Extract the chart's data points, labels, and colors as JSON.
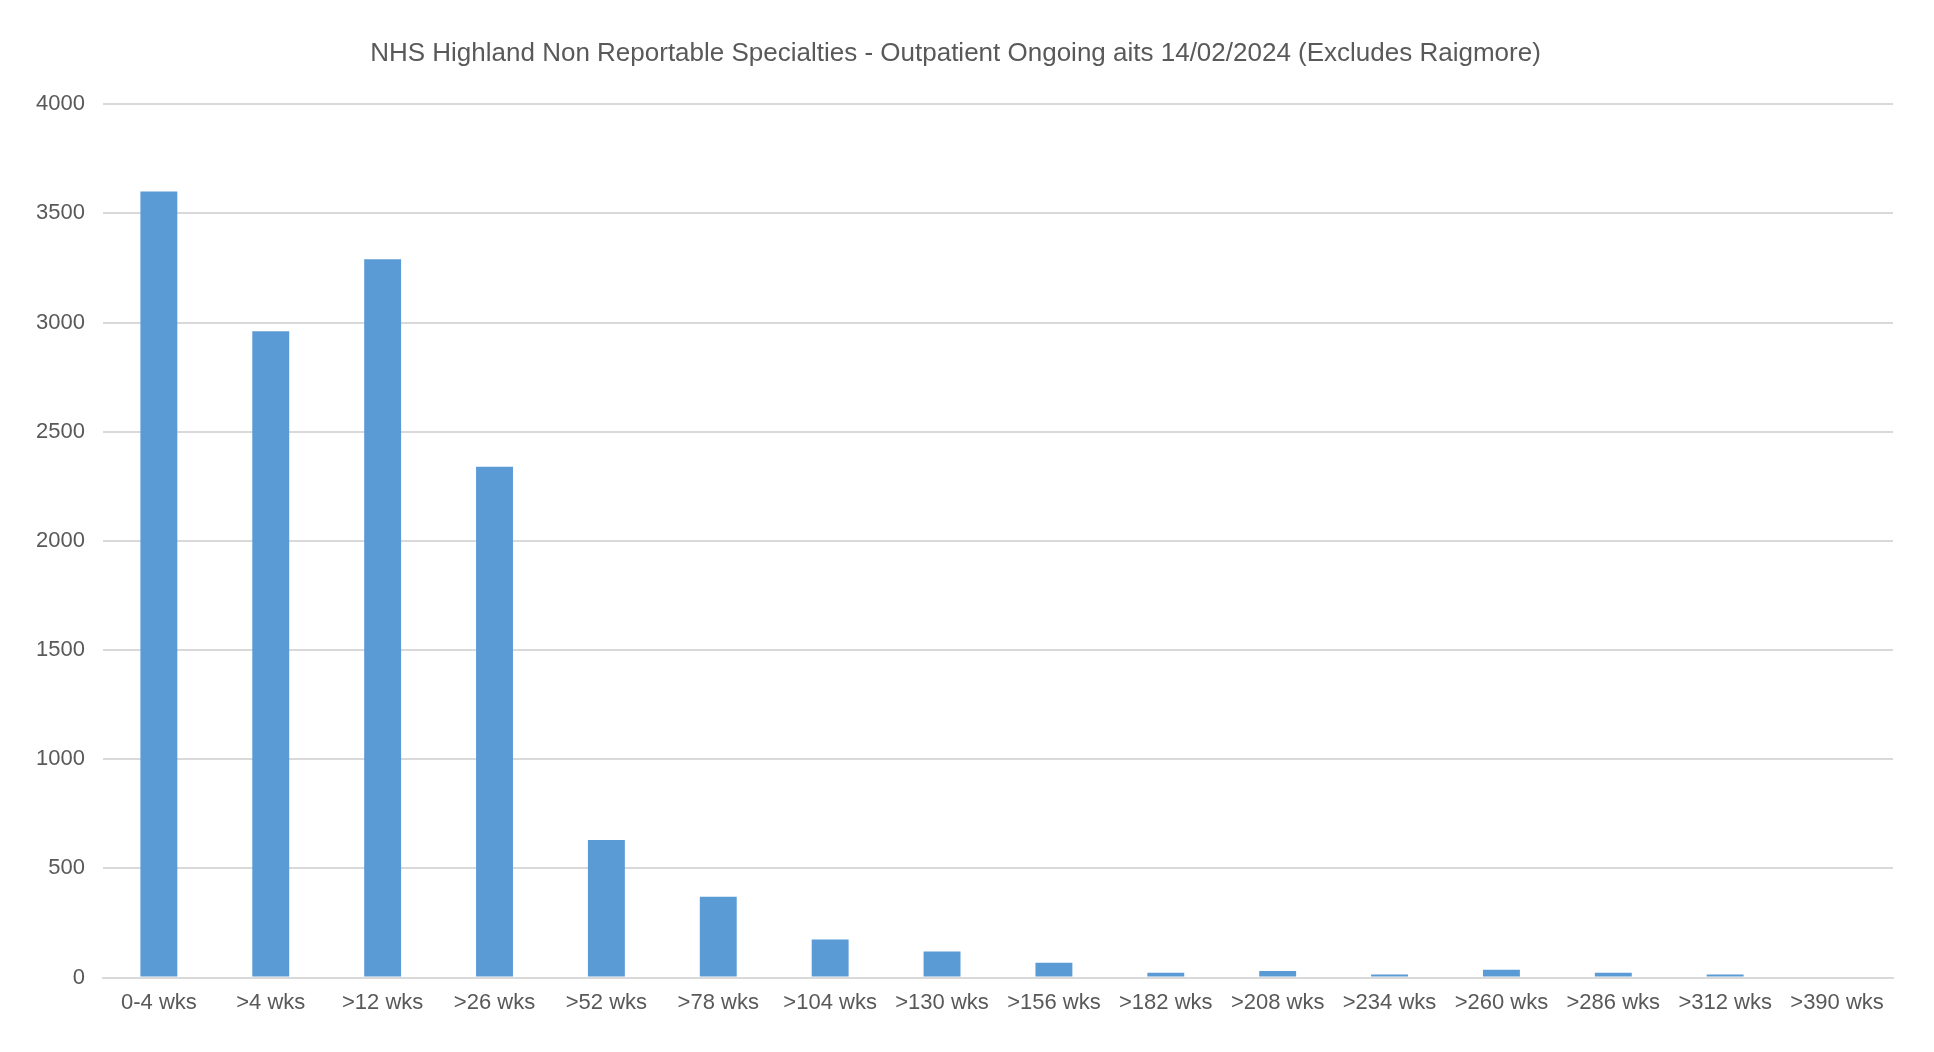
{
  "chart_data": {
    "type": "bar",
    "title": "NHS Highland Non Reportable Specialties - Outpatient Ongoing aits 14/02/2024 (Excludes Raigmore)",
    "categories": [
      "0-4 wks",
      ">4 wks",
      ">12 wks",
      ">26 wks",
      ">52 wks",
      ">78 wks",
      ">104 wks",
      ">130 wks",
      ">156 wks",
      ">182 wks",
      ">208 wks",
      ">234 wks",
      ">260 wks",
      ">286 wks",
      ">312 wks",
      ">390 wks"
    ],
    "values": [
      3600,
      2960,
      3290,
      2340,
      630,
      370,
      175,
      120,
      68,
      22,
      30,
      14,
      36,
      22,
      14,
      0
    ],
    "color": "#5b9bd5",
    "ylim": [
      0,
      4000
    ],
    "yticks": [
      0,
      500,
      1000,
      1500,
      2000,
      2500,
      3000,
      3500,
      4000
    ],
    "grid": "y"
  }
}
